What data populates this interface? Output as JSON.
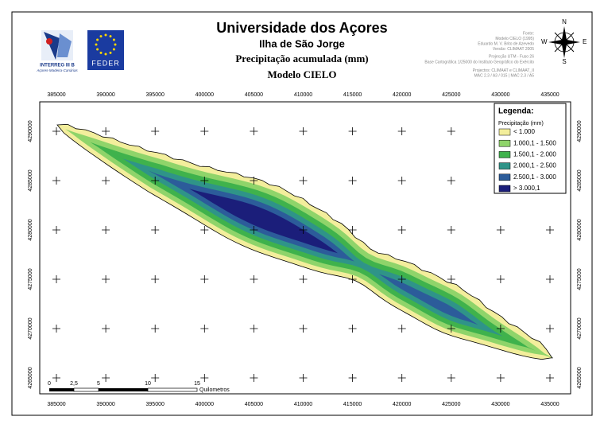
{
  "header": {
    "title": "Universidade dos Açores",
    "island": "Ilha de São Jorge",
    "variable": "Precipitação acumulada (mm)",
    "model": "Modelo CIELO"
  },
  "logos": {
    "interreg": "INTERREG III B",
    "interreg_sub": "Açores-Madeira-Canárias",
    "feder": "FEDER"
  },
  "credits": [
    "Fonte:",
    "Modelo CIELO (1995)",
    "Eduardo M. V. Brito de Azevedo",
    "Versão: CLIMAAT 2005",
    "Projecção UTM - Fuso 26",
    "Base Cartográfica 1/25000 do Instituto Geográfico do Exército",
    "Projectos: CLIMAAT e CLIMAAT_II",
    "MAC 2.3 / A3 / 015 | MAC 2.3 / A5"
  ],
  "compass": {
    "n": "N",
    "s": "S",
    "e": "E",
    "w": "W"
  },
  "axes": {
    "x_ticks": [
      385000,
      390000,
      395000,
      400000,
      405000,
      410000,
      415000,
      420000,
      425000,
      430000,
      435000
    ],
    "y_ticks": [
      4290000,
      4285000,
      4280000,
      4275000,
      4270000,
      4265000
    ]
  },
  "legend": {
    "title": "Legenda:",
    "subtitle": "Precipitação (mm)",
    "items": [
      {
        "label": "< 1.000",
        "color": "#f3ee9c"
      },
      {
        "label": "1.000,1 - 1.500",
        "color": "#8fd46a"
      },
      {
        "label": "1.500,1 - 2.000",
        "color": "#3fb24c"
      },
      {
        "label": "2.000,1 - 2.500",
        "color": "#2f9488"
      },
      {
        "label": "2.500,1 - 3.000",
        "color": "#2c5c9a"
      },
      {
        "label": "> 3.000,1",
        "color": "#1b1e7a"
      }
    ]
  },
  "scale_bar": {
    "labels": [
      "0",
      "2,5",
      "5",
      "10",
      "15"
    ],
    "unit": "Quilometros"
  }
}
